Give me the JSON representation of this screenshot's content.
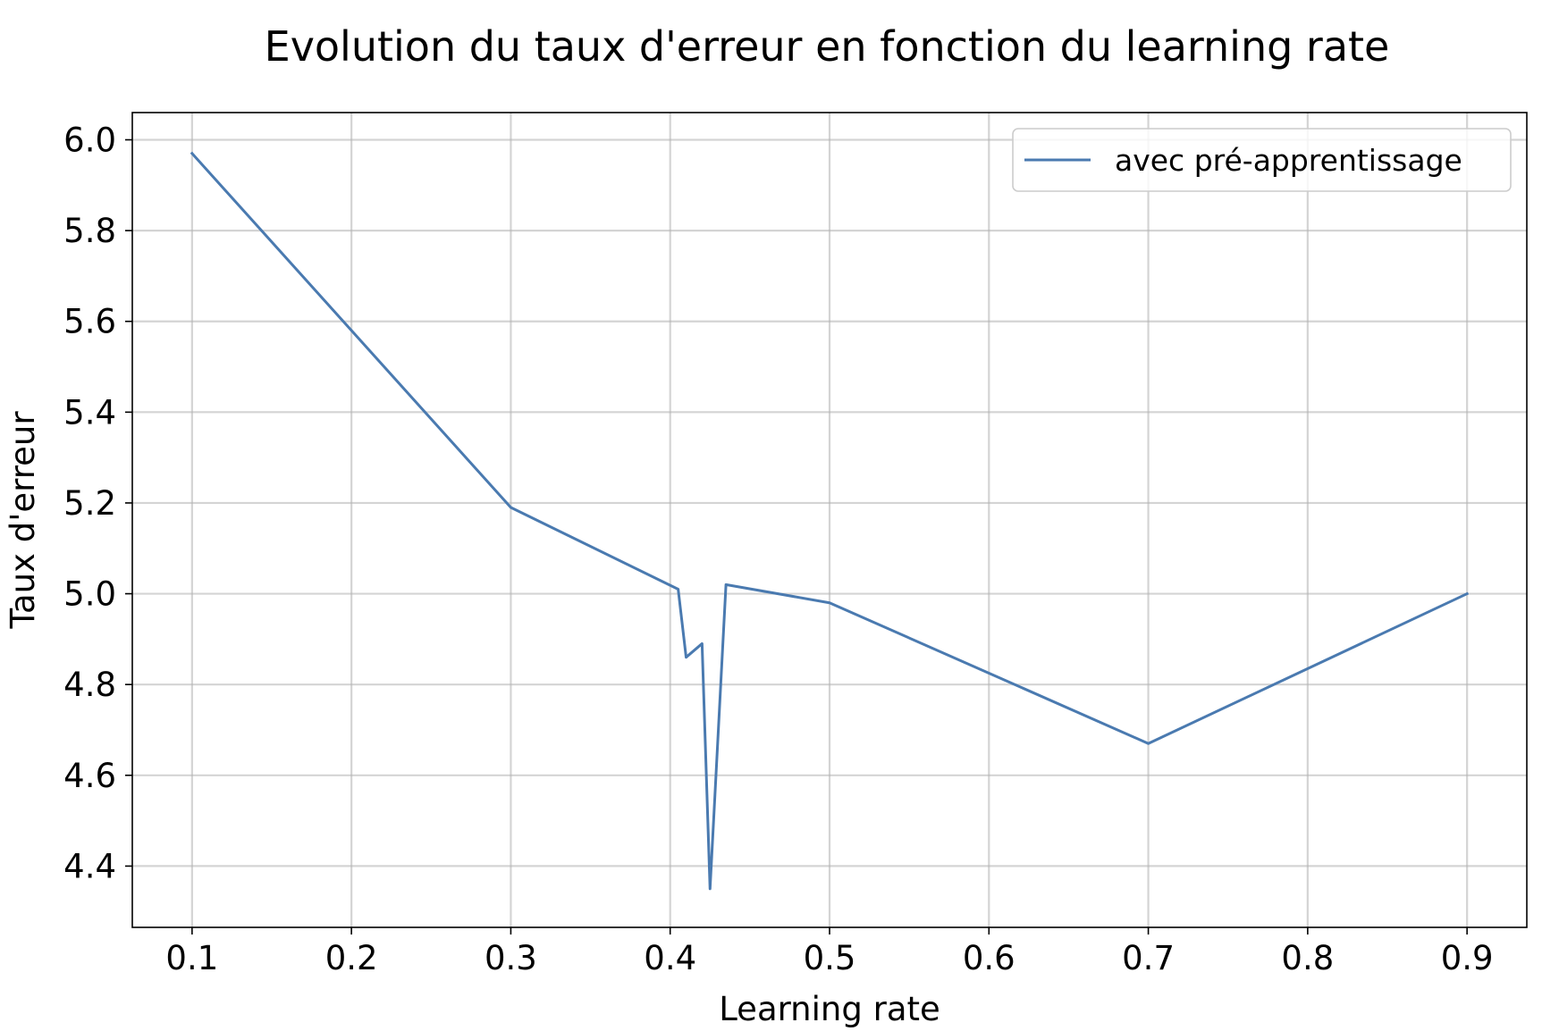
{
  "chart_data": {
    "type": "line",
    "title": "Evolution du taux d'erreur en fonction du learning rate",
    "xlabel": "Learning rate",
    "ylabel": "Taux d'erreur",
    "xlim": [
      0.0625,
      0.9375
    ],
    "ylim": [
      4.265,
      6.06
    ],
    "xticks": [
      0.1,
      0.2,
      0.3,
      0.4,
      0.5,
      0.6,
      0.7,
      0.8,
      0.9
    ],
    "xtick_labels": [
      "0.1",
      "0.2",
      "0.3",
      "0.4",
      "0.5",
      "0.6",
      "0.7",
      "0.8",
      "0.9"
    ],
    "yticks": [
      4.4,
      4.6,
      4.8,
      5.0,
      5.2,
      5.4,
      5.6,
      5.8,
      6.0
    ],
    "ytick_labels": [
      "4.4",
      "4.6",
      "4.8",
      "5.0",
      "5.2",
      "5.4",
      "5.6",
      "5.8",
      "6.0"
    ],
    "grid": true,
    "legend_position": "top-right",
    "series": [
      {
        "name": "avec pré-apprentissage",
        "color": "#4a7ab0",
        "x": [
          0.1,
          0.3,
          0.405,
          0.41,
          0.42,
          0.425,
          0.435,
          0.5,
          0.7,
          0.9
        ],
        "y": [
          5.97,
          5.19,
          5.01,
          4.86,
          4.89,
          4.35,
          5.02,
          4.98,
          4.67,
          5.0
        ]
      }
    ]
  }
}
